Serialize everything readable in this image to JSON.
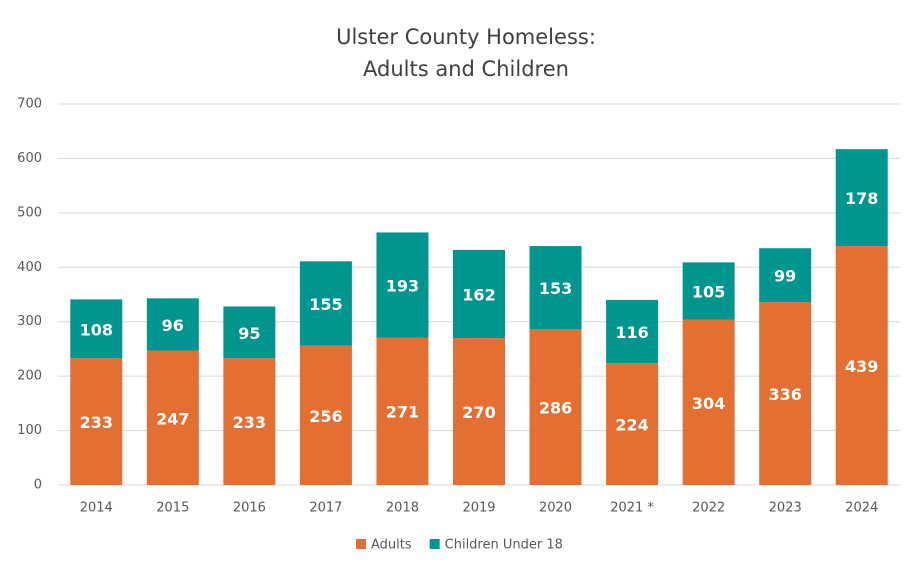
{
  "chart_data": {
    "type": "stacked_bar",
    "title": [
      "Ulster County Homeless:",
      "Adults and Children"
    ],
    "categories": [
      "2014",
      "2015",
      "2016",
      "2017",
      "2018",
      "2019",
      "2020",
      "2021 *",
      "2022",
      "2023",
      "2024"
    ],
    "series": [
      {
        "name": "Adults",
        "color": "#e46f32",
        "values": [
          233,
          247,
          233,
          256,
          271,
          270,
          286,
          224,
          304,
          336,
          439
        ]
      },
      {
        "name": "Children Under 18",
        "color": "#00968f",
        "values": [
          108,
          96,
          95,
          155,
          193,
          162,
          153,
          116,
          105,
          99,
          178
        ]
      }
    ],
    "ylim": [
      0,
      700
    ],
    "yticks": [
      0,
      100,
      200,
      300,
      400,
      500,
      600,
      700
    ],
    "grid": true,
    "legend": "bottom"
  }
}
